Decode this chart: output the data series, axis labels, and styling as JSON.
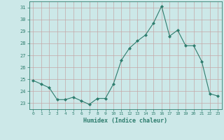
{
  "x": [
    0,
    1,
    2,
    3,
    4,
    5,
    6,
    7,
    8,
    9,
    10,
    11,
    12,
    13,
    14,
    15,
    16,
    17,
    18,
    19,
    20,
    21,
    22,
    23
  ],
  "y": [
    24.9,
    24.6,
    24.3,
    23.3,
    23.3,
    23.5,
    23.2,
    22.9,
    23.4,
    23.4,
    24.6,
    26.6,
    27.6,
    28.2,
    28.7,
    29.7,
    31.1,
    28.6,
    29.1,
    27.8,
    27.8,
    26.5,
    23.8,
    23.6
  ],
  "line_color": "#2e7d6e",
  "marker": "D",
  "marker_size": 2.0,
  "bg_color": "#cce8e8",
  "grid_color": "#c4a8a8",
  "xlabel": "Humidex (Indice chaleur)",
  "ylim": [
    22.5,
    31.5
  ],
  "xlim": [
    -0.5,
    23.5
  ],
  "yticks": [
    23,
    24,
    25,
    26,
    27,
    28,
    29,
    30,
    31
  ],
  "xticks": [
    0,
    1,
    2,
    3,
    4,
    5,
    6,
    7,
    8,
    9,
    10,
    11,
    12,
    13,
    14,
    15,
    16,
    17,
    18,
    19,
    20,
    21,
    22,
    23
  ],
  "label_color": "#2e7d6e",
  "tick_color": "#2e7d6e",
  "spine_color": "#2e7d6e",
  "linewidth": 0.8
}
